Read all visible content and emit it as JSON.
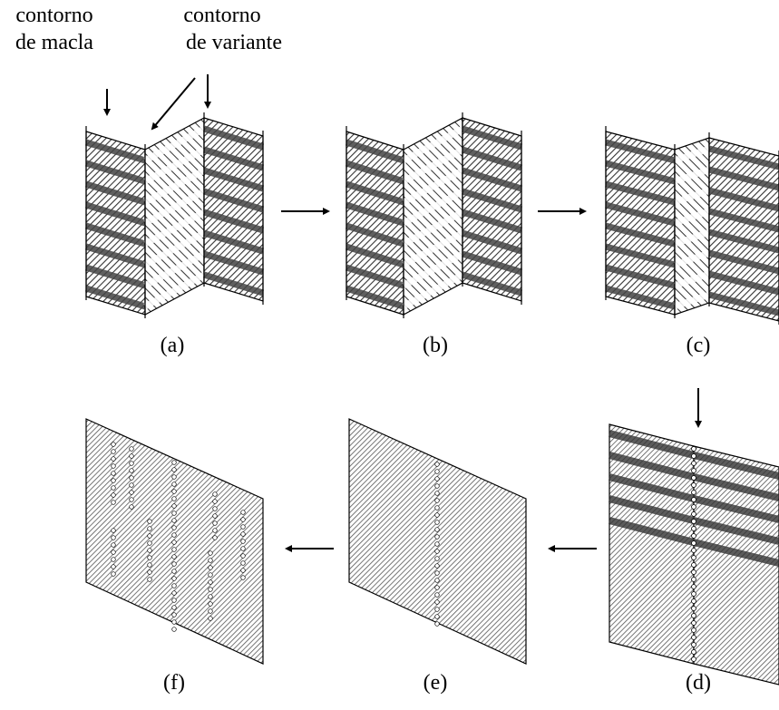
{
  "labels": {
    "twin_boundary": [
      "contorno",
      "de macla"
    ],
    "variant_boundary": [
      "contorno",
      "de variante"
    ]
  },
  "panels": [
    "(a)",
    "(b)",
    "(c)",
    "(d)",
    "(e)",
    "(f)"
  ]
}
